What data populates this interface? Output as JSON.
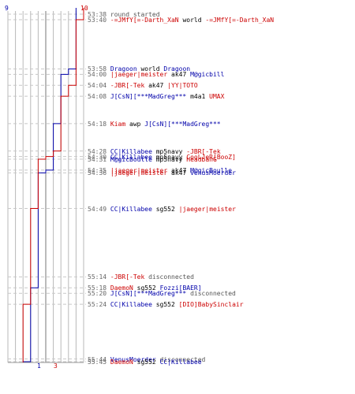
{
  "colors": {
    "team_blue": "#0000aa",
    "team_red": "#cc0000",
    "grid": "#b8b8b8",
    "dashed_guides": "#c8c8c8",
    "timestamp": "#666666"
  },
  "scores": {
    "blue_start": "9",
    "red_start": "10",
    "blue_end": "1",
    "red_end": "3"
  },
  "events": [
    {
      "time": "53:38",
      "type": "info",
      "text": "round started"
    },
    {
      "time": "53:40",
      "type": "kill",
      "killer": "-=JMfY[=-Darth_XaN",
      "killer_team": "red",
      "action": "world",
      "victim": "-=JMfY[=-Darth_XaN",
      "victim_team": "red"
    },
    {
      "time": "53:58",
      "type": "kill",
      "killer": "Dragoon",
      "killer_team": "blue",
      "action": "world",
      "victim": "Dragoon",
      "victim_team": "blue"
    },
    {
      "time": "54:00",
      "type": "kill",
      "killer": "|jaeger|meister",
      "killer_team": "red",
      "action": "ak47",
      "victim": "M@gicbill",
      "victim_team": "blue"
    },
    {
      "time": "54:04",
      "type": "kill",
      "killer": "-JBR[-Tek",
      "killer_team": "red",
      "action": "ak47",
      "victim": "|YY|TOTO",
      "victim_team": "red"
    },
    {
      "time": "54:08",
      "type": "kill",
      "killer": "J[CsN][***MadGreg***",
      "killer_team": "blue",
      "action": "m4a1",
      "victim": "UMAX",
      "victim_team": "red"
    },
    {
      "time": "54:18",
      "type": "kill",
      "killer": "Kiam",
      "killer_team": "red",
      "action": "awp",
      "victim": "J[CsN][***MadGreg***",
      "victim_team": "blue"
    },
    {
      "time": "54:28",
      "type": "kill",
      "killer": "CC|Killabee",
      "killer_team": "blue",
      "action": "mp5navy",
      "victim": "-JBR[-Tek",
      "victim_team": "red"
    },
    {
      "time": "54:30",
      "type": "kill",
      "killer": "CC|Killabee",
      "killer_team": "blue",
      "action": "mp5navy",
      "victim": "CooLJeR[BooZ]",
      "victim_team": "red"
    },
    {
      "time": "54:31",
      "type": "kill",
      "killer": "M@gicBoulle",
      "killer_team": "blue",
      "action": "mp5navy",
      "victim": "HeadbanG",
      "victim_team": "red"
    },
    {
      "time": "54:35",
      "type": "kill",
      "killer": "|jaeger|meister",
      "killer_team": "red",
      "action": "ak47",
      "victim": "M@gicBoulle",
      "victim_team": "blue"
    },
    {
      "time": "54:36",
      "type": "kill",
      "killer": "|jaeger|meister",
      "killer_team": "red",
      "action": "ak47",
      "victim": "VenusMoerder",
      "victim_team": "blue"
    },
    {
      "time": "54:49",
      "type": "kill",
      "killer": "CC|Killabee",
      "killer_team": "blue",
      "action": "sg552",
      "victim": "|jaeger|meister",
      "victim_team": "red"
    },
    {
      "time": "55:14",
      "type": "disconnect",
      "player": "-JBR[-Tek",
      "player_team": "red",
      "text": "disconnected"
    },
    {
      "time": "55:18",
      "type": "kill",
      "killer": "DaemoN",
      "killer_team": "red",
      "action": "sg552",
      "victim": "Fozzi[BAER]",
      "victim_team": "blue"
    },
    {
      "time": "55:20",
      "type": "disconnect",
      "player": "J[CsN][***MadGreg***",
      "player_team": "blue",
      "text": "disconnected"
    },
    {
      "time": "55:24",
      "type": "kill",
      "killer": "CC|Killabee",
      "killer_team": "blue",
      "action": "sg552",
      "victim": "[DIO]BabySinclair",
      "victim_team": "red"
    },
    {
      "time": "55:44",
      "type": "disconnect",
      "player": "VenusMoerder",
      "player_team": "blue",
      "text": "disconnected"
    },
    {
      "time": "55:45",
      "type": "kill",
      "killer": "DaemoN",
      "killer_team": "red",
      "action": "sg552",
      "victim": "CC|Killabee",
      "victim_team": "blue"
    }
  ]
}
